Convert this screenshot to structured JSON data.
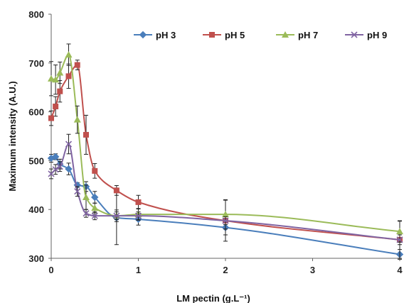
{
  "chart_data": {
    "type": "line",
    "xlabel": "LM pectin (g.L⁻¹)",
    "ylabel": "Maximum intensity (A.U.)",
    "x_ticks": [
      "0",
      "1",
      "2",
      "3",
      "4"
    ],
    "y_ticks": [
      "300",
      "400",
      "500",
      "600",
      "700",
      "800"
    ],
    "xlim": [
      0,
      4
    ],
    "ylim": [
      300,
      800
    ],
    "legend_position": "top",
    "series": [
      {
        "name": "pH 3",
        "color": "#4a7ebb",
        "marker": "diamond",
        "points": [
          [
            0,
            505
          ],
          [
            0.05,
            508
          ],
          [
            0.1,
            493
          ],
          [
            0.2,
            483
          ],
          [
            0.3,
            450
          ],
          [
            0.4,
            447
          ],
          [
            0.5,
            425
          ],
          [
            0.75,
            383
          ],
          [
            1,
            380
          ],
          [
            2,
            363
          ],
          [
            4,
            308
          ]
        ],
        "errors": [
          8,
          6,
          10,
          12,
          5,
          10,
          12,
          55,
          12,
          15,
          10
        ]
      },
      {
        "name": "pH 5",
        "color": "#c0504d",
        "marker": "square",
        "points": [
          [
            0,
            587
          ],
          [
            0.05,
            611
          ],
          [
            0.1,
            642
          ],
          [
            0.2,
            673
          ],
          [
            0.3,
            696
          ],
          [
            0.4,
            553
          ],
          [
            0.5,
            479
          ],
          [
            0.75,
            439
          ],
          [
            1,
            415
          ],
          [
            2,
            377
          ],
          [
            4,
            338
          ]
        ],
        "errors": [
          15,
          20,
          22,
          25,
          10,
          40,
          15,
          10,
          14,
          42,
          38
        ]
      },
      {
        "name": "pH 7",
        "color": "#9bbb59",
        "marker": "triangle",
        "points": [
          [
            0,
            668
          ],
          [
            0.05,
            666
          ],
          [
            0.1,
            680
          ],
          [
            0.2,
            717
          ],
          [
            0.3,
            584
          ],
          [
            0.4,
            425
          ],
          [
            0.5,
            403
          ],
          [
            0.75,
            387
          ],
          [
            1,
            390
          ],
          [
            2,
            390
          ],
          [
            4,
            355
          ]
        ],
        "errors": [
          35,
          30,
          22,
          22,
          28,
          25,
          10,
          12,
          12,
          30,
          22
        ]
      },
      {
        "name": "pH 9",
        "color": "#8064a2",
        "marker": "x",
        "points": [
          [
            0,
            473
          ],
          [
            0.05,
            482
          ],
          [
            0.1,
            488
          ],
          [
            0.2,
            534
          ],
          [
            0.3,
            437
          ],
          [
            0.4,
            392
          ],
          [
            0.5,
            387
          ],
          [
            0.75,
            387
          ],
          [
            1,
            387
          ],
          [
            2,
            377
          ],
          [
            4,
            338
          ]
        ],
        "errors": [
          10,
          10,
          10,
          20,
          10,
          8,
          8,
          8,
          8,
          8,
          10
        ]
      }
    ]
  }
}
